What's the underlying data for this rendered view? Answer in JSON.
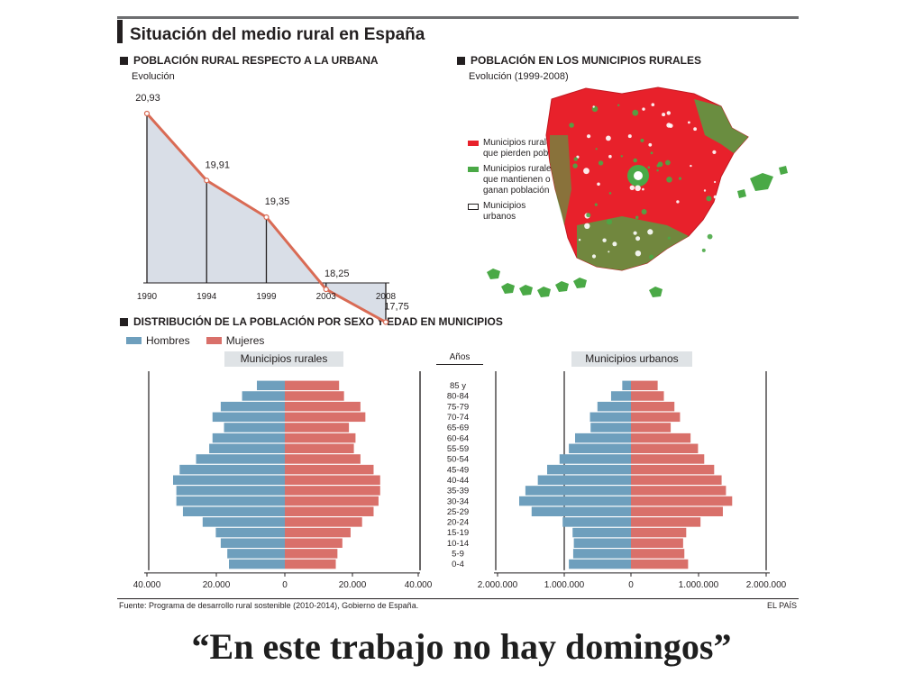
{
  "title": "Situación del medio rural en España",
  "section_evolution": {
    "title": "POBLACIÓN RURAL RESPECTO A LA URBANA",
    "subtitle": "Evolución"
  },
  "section_map": {
    "title": "POBLACIÓN EN LOS MUNICIPIOS RURALES",
    "subtitle": "Evolución (1999-2008)",
    "legend": [
      {
        "label": "Municipios rurales que pierden población",
        "color": "#e8212b"
      },
      {
        "label": "Municipios rurales que mantienen o ganan población",
        "color": "#4aa946"
      },
      {
        "label": "Municipios urbanos",
        "color": "#ffffff"
      }
    ]
  },
  "section_pyramid": {
    "title": "DISTRIBUCIÓN DE LA POBLACIÓN POR SEXO Y EDAD EN MUNICIPIOS",
    "legend_male": "Hombres",
    "legend_female": "Mujeres",
    "rural_header": "Municipios rurales",
    "urban_header": "Municipios urbanos",
    "ages_header": "Años"
  },
  "colors": {
    "male": "#6e9fbd",
    "female": "#d9706a",
    "line": "#d96b55",
    "area": "#d9dee7"
  },
  "source": "Fuente: Programa de desarrollo rural sostenible (2010-2014), Gobierno de España.",
  "brand": "EL PAÍS",
  "headline": "“En este trabajo no hay domingos”",
  "chart_data": [
    {
      "type": "area",
      "categories": [
        "1990",
        "1994",
        "1999",
        "2003",
        "2008"
      ],
      "values": [
        20.93,
        19.91,
        19.35,
        18.25,
        17.75
      ],
      "data_labels": [
        "20,93",
        "19,91",
        "19,35",
        "18,25",
        "17,75"
      ]
    },
    {
      "type": "bar",
      "orientation": "horizontal-pyramid",
      "title": "Municipios rurales",
      "categories": [
        "0-4",
        "5-9",
        "10-14",
        "15-19",
        "20-24",
        "25-29",
        "30-34",
        "35-39",
        "40-44",
        "45-49",
        "50-54",
        "55-59",
        "60-64",
        "65-69",
        "70-74",
        "75-79",
        "80-84",
        "85 y"
      ],
      "series": [
        {
          "name": "Hombres",
          "values": [
            17000,
            17500,
            19500,
            21000,
            25000,
            31000,
            33000,
            33000,
            34000,
            32000,
            27000,
            23000,
            22000,
            18500,
            22000,
            19500,
            13000,
            8500
          ]
        },
        {
          "name": "Mujeres",
          "values": [
            15500,
            16000,
            17500,
            20000,
            23500,
            27000,
            28500,
            29000,
            29000,
            27000,
            23000,
            21000,
            21500,
            19500,
            24500,
            23000,
            18000,
            16500
          ]
        }
      ],
      "xlim": [
        -40000,
        40000
      ],
      "xticks": [
        "40.000",
        "20.000",
        "0",
        "20.000",
        "40.000"
      ]
    },
    {
      "type": "bar",
      "orientation": "horizontal-pyramid",
      "title": "Municipios urbanos",
      "categories": [
        "0-4",
        "5-9",
        "10-14",
        "15-19",
        "20-24",
        "25-29",
        "30-34",
        "35-39",
        "40-44",
        "45-49",
        "50-54",
        "55-59",
        "60-64",
        "65-69",
        "70-74",
        "75-79",
        "80-84",
        "85 y"
      ],
      "series": [
        {
          "name": "Hombres",
          "values": [
            1000000,
            930000,
            920000,
            940000,
            1100000,
            1600000,
            1800000,
            1700000,
            1500000,
            1350000,
            1150000,
            1000000,
            900000,
            650000,
            660000,
            540000,
            320000,
            140000
          ]
        },
        {
          "name": "Mujeres",
          "values": [
            920000,
            860000,
            840000,
            890000,
            1120000,
            1480000,
            1630000,
            1530000,
            1460000,
            1340000,
            1180000,
            1080000,
            960000,
            640000,
            790000,
            700000,
            530000,
            430000
          ]
        }
      ],
      "xlim": [
        -2000000,
        2000000
      ],
      "xticks": [
        "2.000.000",
        "1.000.000",
        "0",
        "1.000.000",
        "2.000.000"
      ]
    }
  ]
}
